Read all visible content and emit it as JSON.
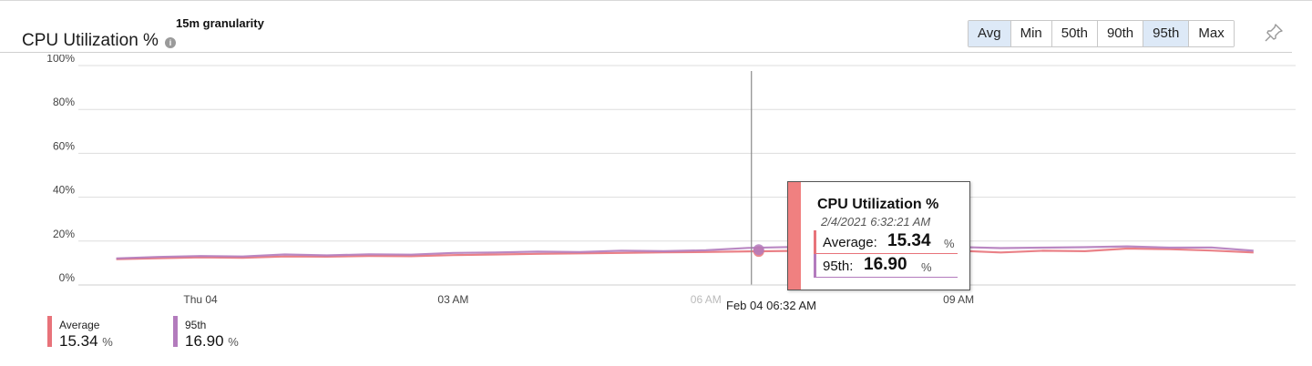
{
  "title": "CPU Utilization %",
  "granularity": "15m granularity",
  "stat_buttons": [
    {
      "label": "Avg",
      "active": true
    },
    {
      "label": "Min",
      "active": false
    },
    {
      "label": "50th",
      "active": false
    },
    {
      "label": "90th",
      "active": false
    },
    {
      "label": "95th",
      "active": true
    },
    {
      "label": "Max",
      "active": false
    }
  ],
  "icons": {
    "info": "info-icon",
    "pin": "pin-icon"
  },
  "colors": {
    "average": "#e8737a",
    "p95": "#b37bbd",
    "grid": "#dddddd",
    "cursor": "#8a8a8a",
    "tooltip_bar": "#f08080"
  },
  "cursor": {
    "x_hours": 6.54,
    "label": "Feb 04 06:32 AM"
  },
  "tooltip": {
    "title": "CPU Utilization %",
    "time": "2/4/2021 6:32:21 AM",
    "rows": [
      {
        "label": "Average:",
        "value": "15.34",
        "unit": "%"
      },
      {
        "label": "95th:",
        "value": "16.90",
        "unit": "%"
      }
    ]
  },
  "legend": [
    {
      "name": "Average",
      "value": "15.34",
      "unit": "%"
    },
    {
      "name": "95th",
      "value": "16.90",
      "unit": "%"
    }
  ],
  "chart_data": {
    "type": "line",
    "ylabel": "",
    "xlabel": "",
    "ylim": [
      0,
      100
    ],
    "y_ticks": [
      "100%",
      "80%",
      "60%",
      "40%",
      "20%",
      "0%"
    ],
    "y_tick_values": [
      100,
      80,
      60,
      40,
      20,
      0
    ],
    "x_range_hours": [
      -1.45,
      13.0
    ],
    "x_ticks": [
      {
        "hours": 0,
        "label": "Thu 04"
      },
      {
        "hours": 3,
        "label": "03 AM"
      },
      {
        "hours": 6,
        "label": "06 AM"
      },
      {
        "hours": 9,
        "label": "09 AM"
      }
    ],
    "grid": true,
    "legend_position": "bottom-left",
    "x_hours": [
      -1.0,
      -0.5,
      0.0,
      0.5,
      1.0,
      1.5,
      2.0,
      2.5,
      3.0,
      3.5,
      4.0,
      4.5,
      5.0,
      5.5,
      6.0,
      6.5,
      7.0,
      7.5,
      8.0,
      8.5,
      9.0,
      9.5,
      10.0,
      10.5,
      11.0,
      11.5,
      12.0,
      12.5
    ],
    "series": [
      {
        "name": "Average",
        "values": [
          11.8,
          12.2,
          12.6,
          12.4,
          13.0,
          12.9,
          13.2,
          13.1,
          13.6,
          13.9,
          14.2,
          14.4,
          14.6,
          14.9,
          15.0,
          15.3,
          15.5,
          15.9,
          15.8,
          16.2,
          15.6,
          14.8,
          15.6,
          15.4,
          16.6,
          16.3,
          15.7,
          14.8
        ]
      },
      {
        "name": "95th",
        "values": [
          12.1,
          12.8,
          13.2,
          13.0,
          13.9,
          13.5,
          14.0,
          13.8,
          14.6,
          14.8,
          15.2,
          15.0,
          15.6,
          15.4,
          15.8,
          16.9,
          17.3,
          17.0,
          17.1,
          16.9,
          17.3,
          16.8,
          17.0,
          17.2,
          17.6,
          17.0,
          17.1,
          15.6
        ]
      }
    ]
  }
}
